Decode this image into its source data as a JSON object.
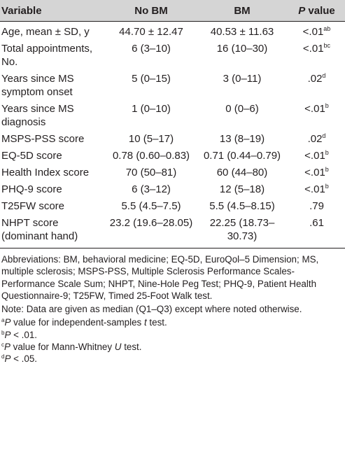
{
  "table": {
    "headers": [
      "Variable",
      "No BM",
      "BM",
      "P",
      "value"
    ],
    "rows": [
      {
        "variable": "Age, mean ± SD, y",
        "nobm": "44.70 ± 12.47",
        "bm": "40.53 ± 11.63",
        "p": "<.01",
        "sup": "ab"
      },
      {
        "variable": "Total appointments, No.",
        "nobm": "6 (3–10)",
        "bm": "16 (10–30)",
        "p": "<.01",
        "sup": "bc"
      },
      {
        "variable": "Years since MS symptom onset",
        "nobm": "5 (0–15)",
        "bm": "3 (0–11)",
        "p": ".02",
        "sup": "d"
      },
      {
        "variable": "Years since MS diagnosis",
        "nobm": "1 (0–10)",
        "bm": "0 (0–6)",
        "p": "<.01",
        "sup": "b"
      },
      {
        "variable": "MSPS-PSS score",
        "nobm": "10 (5–17)",
        "bm": "13 (8–19)",
        "p": ".02",
        "sup": "d"
      },
      {
        "variable": "EQ-5D score",
        "nobm": "0.78 (0.60–0.83)",
        "bm": "0.71 (0.44–0.79)",
        "p": "<.01",
        "sup": "b"
      },
      {
        "variable": "Health Index score",
        "nobm": "70 (50–81)",
        "bm": "60 (44–80)",
        "p": "<.01",
        "sup": "b"
      },
      {
        "variable": "PHQ-9 score",
        "nobm": "6 (3–12)",
        "bm": "12 (5–18)",
        "p": "<.01",
        "sup": "b"
      },
      {
        "variable": "T25FW score",
        "nobm": "5.5 (4.5–7.5)",
        "bm": "5.5 (4.5–8.15)",
        "p": ".79",
        "sup": ""
      },
      {
        "variable": "NHPT score (dominant hand)",
        "nobm": "23.2 (19.6–28.05)",
        "bm": "22.25 (18.73–30.73)",
        "p": ".61",
        "sup": ""
      }
    ]
  },
  "notes": {
    "abbreviations": "Abbreviations: BM, behavioral medicine; EQ-5D, EuroQol–5 Dimension; MS, multiple sclerosis; MSPS-PSS, Multiple Sclerosis Performance Scales-Performance Scale Sum; NHPT, Nine-Hole Peg Test; PHQ-9, Patient Health Questionnaire-9; T25FW, Timed 25-Foot Walk test.",
    "data_note": "Note: Data are given as median (Q1–Q3) except where noted otherwise.",
    "footnotes": [
      {
        "mark": "a",
        "pre_italic": "P",
        "text": " value for independent-samples ",
        "post_italic": "t",
        "end": " test."
      },
      {
        "mark": "b",
        "pre_italic": "P",
        "text": " < .01.",
        "post_italic": "",
        "end": ""
      },
      {
        "mark": "c",
        "pre_italic": "P",
        "text": " value for Mann-Whitney ",
        "post_italic": "U",
        "end": " test."
      },
      {
        "mark": "d",
        "pre_italic": "P",
        "text": " < .05.",
        "post_italic": "",
        "end": ""
      }
    ]
  }
}
